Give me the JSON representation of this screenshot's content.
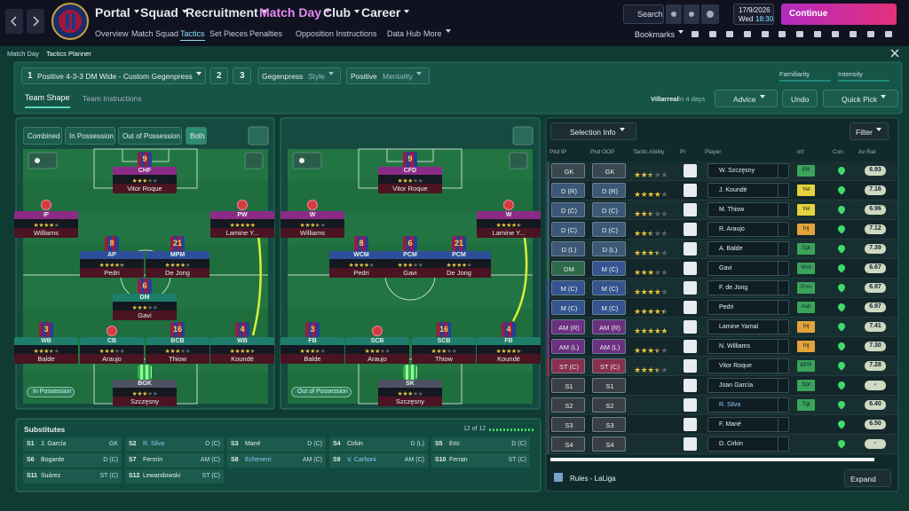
{
  "header": {
    "nav": [
      "Portal",
      "Squad",
      "Recruitment",
      "Match Day",
      "Club",
      "Career"
    ],
    "subnav": [
      "Overview",
      "Match Squad",
      "Tactics",
      "Set Pieces",
      "Penalties",
      "Opposition Instructions",
      "Data Hub",
      "More"
    ],
    "search": "Search",
    "date": "17/9/2026",
    "day": "Wed",
    "time": "18:30",
    "continue": "Continue",
    "bookmarks": "Bookmarks"
  },
  "breadcrumb": [
    "Match Day",
    "Tactics Planner"
  ],
  "tactic": {
    "slot": "1",
    "name": "Positive 4-3-3 DM Wide - Custom Gegenpress",
    "other_slots": [
      "2",
      "3"
    ],
    "style": "Gegenpress",
    "style_label": "Style",
    "mentality": "Positive",
    "mentality_label": "Mentality",
    "familiarity": "Familiarity",
    "intensity": "Intensity"
  },
  "tabs": [
    "Team Shape",
    "Team Instructions"
  ],
  "opponent": "Villarreal",
  "opponent_when": "In 4 days",
  "buttons": [
    "Advice",
    "Undo",
    "Quick Pick"
  ],
  "pitches": [
    {
      "toggles": [
        "Combined",
        "In Possession",
        "Out of Possession",
        "Both"
      ],
      "label": "In Possession",
      "players": [
        {
          "role": "CHF",
          "number": 9,
          "name": "Vitor Roque",
          "stars": 3
        },
        {
          "role": "IF",
          "name": "Williams",
          "stars": 4
        },
        {
          "role": "PW",
          "name": "Lamine Y...",
          "stars": 5
        },
        {
          "role": "AP",
          "number": 8,
          "name": "Pedri",
          "stars": 4.5
        },
        {
          "role": "MPM",
          "number": 21,
          "name": "De Jong",
          "stars": 4
        },
        {
          "role": "DM",
          "number": 6,
          "name": "Gavi",
          "stars": 3
        },
        {
          "role": "WB",
          "number": 3,
          "name": "Balde",
          "stars": 3.5
        },
        {
          "role": "CB",
          "name": "Araujo",
          "stars": 3
        },
        {
          "role": "BCB",
          "number": 16,
          "name": "Thiow",
          "stars": 3
        },
        {
          "role": "WB",
          "number": 4,
          "name": "Koundé",
          "stars": 4.5
        },
        {
          "role": "BGK",
          "name": "Szczęsny",
          "stars": 3
        }
      ]
    },
    {
      "label": "Out of Possession",
      "players": [
        {
          "role": "CFD",
          "number": 9,
          "name": "Vitor Roque",
          "stars": 3
        },
        {
          "role": "W",
          "name": "Williams",
          "stars": 3.5
        },
        {
          "role": "W",
          "name": "Lamine Y...",
          "stars": 4.5
        },
        {
          "role": "WCM",
          "number": 8,
          "name": "Pedri",
          "stars": 4
        },
        {
          "role": "PCM",
          "number": 6,
          "name": "Gavi",
          "stars": 3
        },
        {
          "role": "PCM",
          "number": 21,
          "name": "De Jong",
          "stars": 4
        },
        {
          "role": "FB",
          "number": 3,
          "name": "Balde",
          "stars": 3.5
        },
        {
          "role": "SCB",
          "name": "Araujo",
          "stars": 3
        },
        {
          "role": "SCB",
          "number": 16,
          "name": "Thiow",
          "stars": 3
        },
        {
          "role": "FB",
          "number": 4,
          "name": "Koundé",
          "stars": 4.5
        },
        {
          "role": "SK",
          "name": "Szczęsny",
          "stars": 3
        }
      ]
    }
  ],
  "substitutes": {
    "title": "Substitutes",
    "count": "12 of 12",
    "players": [
      [
        "S1",
        "J. García",
        "GK"
      ],
      [
        "S2",
        "R. Silva",
        "D (C)"
      ],
      [
        "S3",
        "Mané",
        "D (C)"
      ],
      [
        "S4",
        "Cirkin",
        "D (L)"
      ],
      [
        "S5",
        "Eric",
        "D (C)"
      ],
      [
        "S6",
        "Bogarde",
        "D (C)"
      ],
      [
        "S7",
        "Fermín",
        "AM (C)"
      ],
      [
        "S8",
        "Echeverri",
        "AM (C)"
      ],
      [
        "S9",
        "V. Carboni",
        "AM (C)"
      ],
      [
        "S10",
        "Ferran",
        "ST (C)"
      ],
      [
        "S11",
        "Suárez",
        "ST (C)"
      ],
      [
        "S12",
        "Lewandowski",
        "ST (C)"
      ]
    ]
  },
  "selection": {
    "button": "Selection Info",
    "filter": "Filter",
    "columns": [
      "Pkd IP",
      "Pkd OOP",
      "Tactic Ability",
      "PI",
      "Player",
      "Inf",
      "Con",
      "Av Rat"
    ],
    "rows": [
      {
        "ip": "GK",
        "oop": "GK",
        "ability": 2.5,
        "player": "W. Szczęsny",
        "inf": "PR",
        "rat": "6.93"
      },
      {
        "ip": "D (R)",
        "oop": "D (R)",
        "ability": 4,
        "player": "J. Koundé",
        "inf": "Yel",
        "rat": "7.16"
      },
      {
        "ip": "D (C)",
        "oop": "D (C)",
        "ability": 2.5,
        "player": "M. Thiow",
        "inf": "Yel",
        "rat": "6.96"
      },
      {
        "ip": "D (C)",
        "oop": "D (C)",
        "ability": 2.5,
        "player": "R. Araujo",
        "inf": "Inj",
        "rat": "7.12"
      },
      {
        "ip": "D (L)",
        "oop": "D (L)",
        "ability": 3.5,
        "player": "A. Balde",
        "inf": "Spt",
        "rat": "7.39"
      },
      {
        "ip": "DM",
        "oop": "M (C)",
        "ability": 3,
        "player": "Gavi",
        "inf": "Wnt",
        "rat": "6.67"
      },
      {
        "ip": "M (C)",
        "oop": "M (C)",
        "ability": 4,
        "player": "F. de Jong",
        "inf": "Prm",
        "rat": "6.97"
      },
      {
        "ip": "M (C)",
        "oop": "M (C)",
        "ability": 4.5,
        "player": "Pedri",
        "inf": "Ask",
        "rat": "6.97"
      },
      {
        "ip": "AM (R)",
        "oop": "AM (R)",
        "ability": 5,
        "player": "Lamine Yamal",
        "inf": "Inj",
        "rat": "7.41"
      },
      {
        "ip": "AM (L)",
        "oop": "AM (L)",
        "ability": 3.5,
        "player": "N. Williams",
        "inf": "Inj",
        "rat": "7.30"
      },
      {
        "ip": "ST (C)",
        "oop": "ST (C)",
        "ability": 3.5,
        "player": "Vitor Roque",
        "inf": "BPR",
        "rat": "7.28"
      },
      {
        "ip": "S1",
        "oop": "S1",
        "player": "Joan García",
        "inf": "Spt",
        "rat": "-"
      },
      {
        "ip": "S2",
        "oop": "S2",
        "player": "R. Silva",
        "inf": "Tgt",
        "rat": "6.40"
      },
      {
        "ip": "S3",
        "oop": "S3",
        "player": "F. Mané",
        "rat": "6.50"
      },
      {
        "ip": "S4",
        "oop": "S4",
        "player": "D. Cirkin",
        "rat": "-"
      }
    ]
  },
  "footer": {
    "rules": "Rules - LaLiga",
    "expand": "Expand"
  }
}
